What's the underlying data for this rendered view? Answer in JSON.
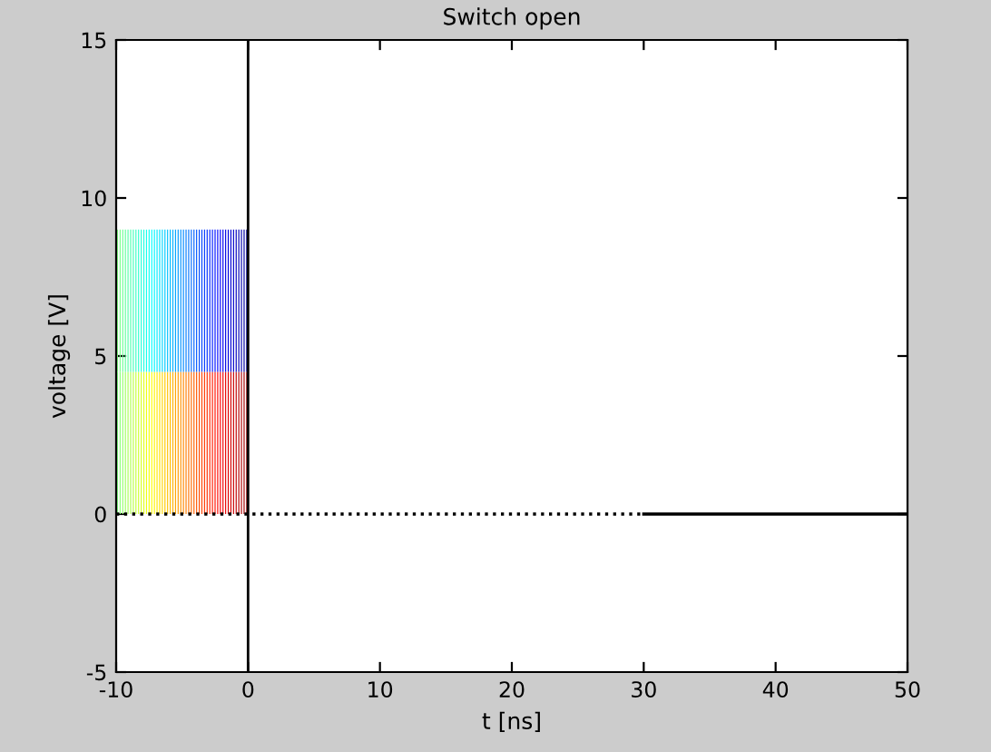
{
  "chart_data": {
    "type": "bar",
    "title": "Switch open",
    "xlabel": "t [ns]",
    "ylabel": "voltage [V]",
    "x": [
      -9.9,
      -9.7,
      -9.5,
      -9.3,
      -9.1,
      -8.9,
      -8.7,
      -8.5,
      -8.3,
      -8.1,
      -7.9,
      -7.7,
      -7.5,
      -7.3,
      -7.1,
      -6.9,
      -6.7,
      -6.5,
      -6.3,
      -6.1,
      -5.9,
      -5.7,
      -5.5,
      -5.3,
      -5.1,
      -4.9,
      -4.7,
      -4.5,
      -4.3,
      -4.1,
      -3.9,
      -3.7,
      -3.5,
      -3.3,
      -3.1,
      -2.9,
      -2.7,
      -2.5,
      -2.3,
      -2.1,
      -1.9,
      -1.7,
      -1.5,
      -1.3,
      -1.1,
      -0.9,
      -0.7,
      -0.5,
      -0.3,
      -0.1
    ],
    "stacked": true,
    "series": [
      {
        "values": [
          4.5,
          4.5,
          4.5,
          4.5,
          4.5,
          4.5,
          4.5,
          4.5,
          4.5,
          4.5,
          4.5,
          4.5,
          4.5,
          4.5,
          4.5,
          4.5,
          4.5,
          4.5,
          4.5,
          4.5,
          4.5,
          4.5,
          4.5,
          4.5,
          4.5,
          4.5,
          4.5,
          4.5,
          4.5,
          4.5,
          4.5,
          4.5,
          4.5,
          4.5,
          4.5,
          4.5,
          4.5,
          4.5,
          4.5,
          4.5,
          4.5,
          4.5,
          4.5,
          4.5,
          4.5,
          4.5,
          4.5,
          4.5,
          4.5,
          4.5
        ],
        "colors": [
          "#80FF80",
          "#89FF76",
          "#93FF6C",
          "#9DFF62",
          "#A7FF58",
          "#B1FF4E",
          "#BBFF44",
          "#C5FF3A",
          "#CEFF30",
          "#D8FF26",
          "#E2FF1D",
          "#ECFF13",
          "#F6FF09",
          "#FFFE00",
          "#FFF400",
          "#FFEA00",
          "#FFE000",
          "#FFD600",
          "#FFCC00",
          "#FFC300",
          "#FFB900",
          "#FFAF00",
          "#FFA500",
          "#FF9B00",
          "#FF9100",
          "#FF8700",
          "#FF7D00",
          "#FF7300",
          "#FF6A00",
          "#FF6000",
          "#FF5600",
          "#FF4C00",
          "#FF4200",
          "#FF3800",
          "#FF2E00",
          "#FF2400",
          "#FF1A00",
          "#FF1100",
          "#FF0700",
          "#FC0000",
          "#F20000",
          "#E80000",
          "#DE0000",
          "#D40000",
          "#CA0000",
          "#C00000",
          "#B60000",
          "#AD0000",
          "#A30000",
          "#990000"
        ]
      },
      {
        "values": [
          4.5,
          4.5,
          4.5,
          4.5,
          4.5,
          4.5,
          4.5,
          4.5,
          4.5,
          4.5,
          4.5,
          4.5,
          4.5,
          4.5,
          4.5,
          4.5,
          4.5,
          4.5,
          4.5,
          4.5,
          4.5,
          4.5,
          4.5,
          4.5,
          4.5,
          4.5,
          4.5,
          4.5,
          4.5,
          4.5,
          4.5,
          4.5,
          4.5,
          4.5,
          4.5,
          4.5,
          4.5,
          4.5,
          4.5,
          4.5,
          4.5,
          4.5,
          4.5,
          4.5,
          4.5,
          4.5,
          4.5,
          4.5,
          4.5,
          4.5
        ],
        "colors": [
          "#80FF80",
          "#76FF89",
          "#6CFF93",
          "#62FF9D",
          "#58FFA7",
          "#4EFFB1",
          "#44FFBB",
          "#3AFFC5",
          "#30FFCE",
          "#26FFD8",
          "#1DFFE2",
          "#13FFEC",
          "#09FFF6",
          "#00FEFF",
          "#00F4FF",
          "#00EAFF",
          "#00E0FF",
          "#00D6FF",
          "#00CCFF",
          "#00C3FF",
          "#00B9FF",
          "#00AFFF",
          "#00A5FF",
          "#009BFF",
          "#0091FF",
          "#0087FF",
          "#007DFF",
          "#0073FF",
          "#006AFF",
          "#0060FF",
          "#0056FF",
          "#004CFF",
          "#0042FF",
          "#0038FF",
          "#002EFF",
          "#0024FF",
          "#001AFF",
          "#0011FF",
          "#0007FF",
          "#0000FC",
          "#0000F2",
          "#0000E8",
          "#0000DE",
          "#0000D4",
          "#0000CA",
          "#0000C0",
          "#0000B6",
          "#0000AD",
          "#0000A3",
          "#000099"
        ]
      },
      {
        "type": "line",
        "x": [
          -10,
          30
        ],
        "values": [
          0,
          0
        ],
        "color": "#000000",
        "line_style": "dotted"
      },
      {
        "type": "line",
        "x": [
          30,
          50
        ],
        "values": [
          0,
          0
        ],
        "color": "#000000",
        "line_style": "solid"
      }
    ],
    "ref_lines": [
      {
        "axis": "x",
        "value": 0,
        "color": "#000000"
      }
    ],
    "xlim": [
      -10,
      50
    ],
    "xticks": [
      -10,
      0,
      10,
      20,
      30,
      40,
      50
    ],
    "ylim": [
      -5,
      15
    ],
    "yticks": [
      -5,
      0,
      5,
      10,
      15
    ],
    "grid": false,
    "legend": false
  }
}
